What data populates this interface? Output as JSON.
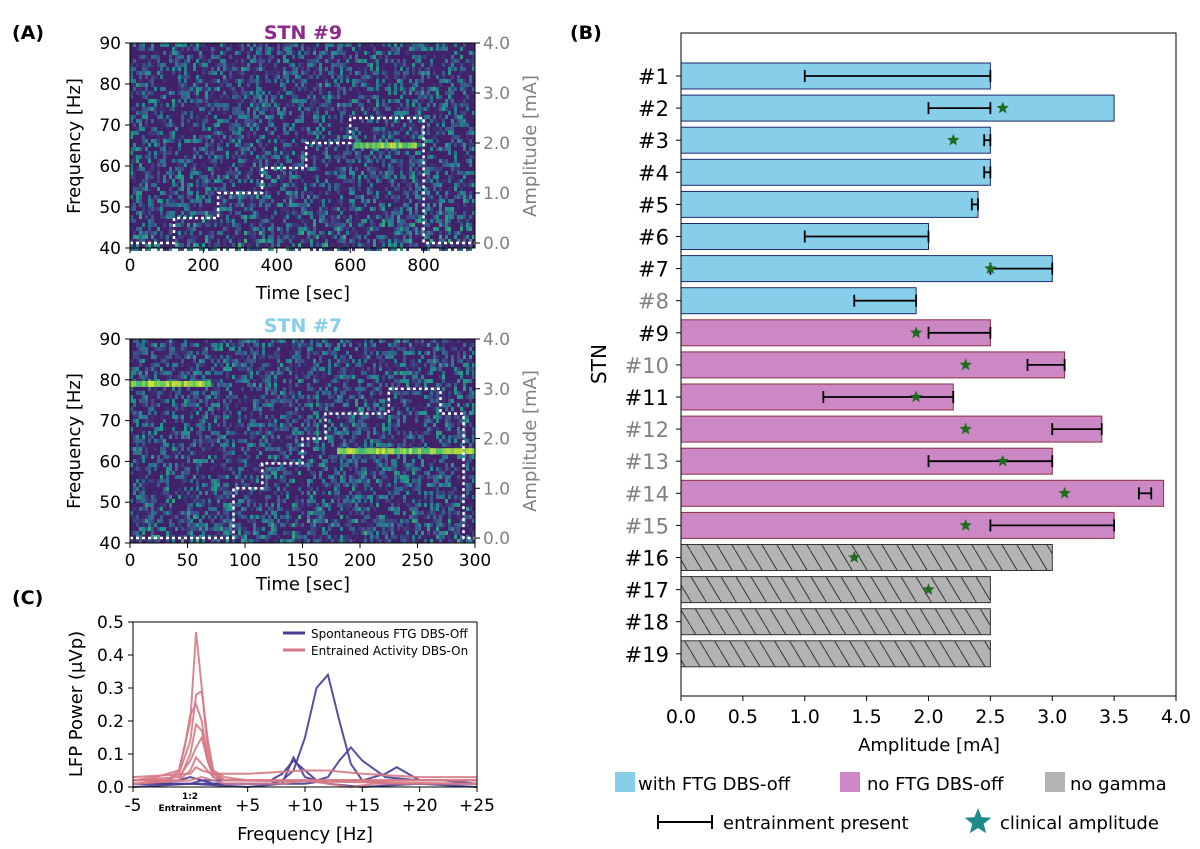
{
  "panel_labels": {
    "a": "(A)",
    "b": "(B)",
    "c": "(C)"
  },
  "colors": {
    "ftg_blue": "#87ceeb",
    "noftg_pink": "#cc88c4",
    "gray": "#b3b3b3",
    "star": "#1f6b1f",
    "legend_star": "#1f8a8a",
    "spont_line": "#473c96",
    "entr_line": "#d67a85",
    "stn9_title": "#8a2a8a",
    "stn7_title": "#87ceeb",
    "label_gray": "#808080"
  },
  "chart_data": [
    {
      "id": "spec9",
      "type": "heatmap",
      "title": "STN #9",
      "xlabel": "Time [sec]",
      "ylabel": "Frequency [Hz]",
      "y2label": "Amplitude [mA]",
      "xlim": [
        0,
        940
      ],
      "ylim": [
        40,
        90
      ],
      "y2lim": [
        -0.1,
        4.0
      ],
      "xticks": [
        "0",
        "200",
        "400",
        "600",
        "800"
      ],
      "xtick_values": [
        0,
        200,
        400,
        600,
        800
      ],
      "yticks": [
        "40",
        "50",
        "60",
        "70",
        "80",
        "90"
      ],
      "yticks2": [
        "0.0",
        "1.0",
        "2.0",
        "3.0",
        "4.0"
      ],
      "amplitude_steps": [
        {
          "t_start": 0,
          "t_end": 120,
          "amp": 0.0
        },
        {
          "t_start": 120,
          "t_end": 240,
          "amp": 0.5
        },
        {
          "t_start": 240,
          "t_end": 360,
          "amp": 1.0
        },
        {
          "t_start": 360,
          "t_end": 480,
          "amp": 1.5
        },
        {
          "t_start": 480,
          "t_end": 600,
          "amp": 2.0
        },
        {
          "t_start": 600,
          "t_end": 800,
          "amp": 2.5
        },
        {
          "t_start": 800,
          "t_end": 940,
          "amp": 0.0
        }
      ],
      "narrowband_features": [
        {
          "t_start": 610,
          "t_end": 780,
          "freq": 65
        }
      ]
    },
    {
      "id": "spec7",
      "type": "heatmap",
      "title": "STN #7",
      "xlabel": "Time [sec]",
      "ylabel": "Frequency [Hz]",
      "y2label": "Amplitude [mA]",
      "xlim": [
        0,
        300
      ],
      "ylim": [
        40,
        90
      ],
      "y2lim": [
        -0.1,
        4.0
      ],
      "xticks": [
        "0",
        "50",
        "100",
        "150",
        "200",
        "250",
        "300"
      ],
      "xtick_values": [
        0,
        50,
        100,
        150,
        200,
        250,
        300
      ],
      "yticks": [
        "40",
        "50",
        "60",
        "70",
        "80",
        "90"
      ],
      "yticks2": [
        "0.0",
        "1.0",
        "2.0",
        "3.0",
        "4.0"
      ],
      "amplitude_steps": [
        {
          "t_start": 0,
          "t_end": 90,
          "amp": 0.0
        },
        {
          "t_start": 90,
          "t_end": 115,
          "amp": 1.0
        },
        {
          "t_start": 115,
          "t_end": 150,
          "amp": 1.5
        },
        {
          "t_start": 150,
          "t_end": 170,
          "amp": 2.0
        },
        {
          "t_start": 170,
          "t_end": 225,
          "amp": 2.5
        },
        {
          "t_start": 225,
          "t_end": 270,
          "amp": 3.0
        },
        {
          "t_start": 270,
          "t_end": 280,
          "amp": 2.5
        },
        {
          "t_start": 280,
          "t_end": 290,
          "amp": 2.5
        },
        {
          "t_start": 290,
          "t_end": 300,
          "amp": 0.0
        }
      ],
      "narrowband_features": [
        {
          "t_start": 0,
          "t_end": 70,
          "freq": 79
        },
        {
          "t_start": 180,
          "t_end": 300,
          "freq": 62.5
        }
      ]
    },
    {
      "id": "spectra",
      "type": "line",
      "xlabel": "Frequency [Hz]",
      "ylabel": "LFP Power (μVp)",
      "xlim": [
        -5,
        25
      ],
      "ylim": [
        0,
        0.5
      ],
      "xticks": [
        "-5",
        "+5",
        "+10",
        "+15",
        "+20",
        "+25"
      ],
      "xtick_values": [
        -5,
        5,
        10,
        15,
        20,
        25
      ],
      "yticks": [
        "0.0",
        "0.1",
        "0.2",
        "0.3",
        "0.4",
        "0.5"
      ],
      "entrainment_label": [
        "1:2",
        "Entrainment"
      ],
      "legend": [
        {
          "label": "Spontaneous FTG DBS-Off",
          "color": "#473c96"
        },
        {
          "label": "Entrained Activity DBS-On",
          "color": "#d67a85"
        }
      ],
      "series": [
        {
          "group": "spont",
          "x": [
            -5,
            -3,
            -1,
            0,
            2,
            4,
            6,
            7,
            8,
            9,
            10,
            11,
            12,
            13,
            14,
            15,
            17,
            20,
            25
          ],
          "y": [
            0.01,
            0.01,
            0.01,
            0.01,
            0.01,
            0.01,
            0.01,
            0.01,
            0.02,
            0.05,
            0.15,
            0.3,
            0.34,
            0.2,
            0.07,
            0.02,
            0.01,
            0.01,
            0.01
          ]
        },
        {
          "group": "spont",
          "x": [
            -5,
            -1,
            0,
            1,
            3,
            5,
            7,
            8,
            9,
            10,
            11,
            12,
            13,
            14,
            15,
            17,
            20,
            25
          ],
          "y": [
            0.02,
            0.02,
            0.03,
            0.02,
            0.02,
            0.02,
            0.02,
            0.04,
            0.08,
            0.05,
            0.02,
            0.03,
            0.08,
            0.12,
            0.08,
            0.03,
            0.02,
            0.02
          ]
        },
        {
          "group": "spont",
          "x": [
            -5,
            0,
            1,
            2,
            5,
            8,
            10,
            12,
            15,
            17,
            18,
            19,
            20,
            22,
            25
          ],
          "y": [
            0.01,
            0.01,
            0.02,
            0.01,
            0.01,
            0.01,
            0.01,
            0.02,
            0.02,
            0.04,
            0.06,
            0.04,
            0.02,
            0.02,
            0.01
          ]
        },
        {
          "group": "spont",
          "x": [
            -5,
            0,
            5,
            8,
            9,
            10,
            12,
            15,
            20,
            25
          ],
          "y": [
            0.0,
            0.01,
            0.0,
            0.01,
            0.09,
            0.03,
            0.01,
            0.0,
            0.01,
            0.0
          ]
        },
        {
          "group": "entr",
          "x": [
            -5,
            -3,
            -1,
            0,
            0.5,
            1,
            1.5,
            2,
            3,
            5,
            10,
            15,
            25
          ],
          "y": [
            0.02,
            0.03,
            0.05,
            0.2,
            0.47,
            0.3,
            0.12,
            0.05,
            0.03,
            0.02,
            0.02,
            0.02,
            0.02
          ]
        },
        {
          "group": "entr",
          "x": [
            -5,
            -2,
            -1,
            0,
            0.5,
            1,
            1.5,
            2,
            3,
            5,
            10,
            25
          ],
          "y": [
            0.02,
            0.02,
            0.04,
            0.14,
            0.28,
            0.29,
            0.15,
            0.05,
            0.02,
            0.02,
            0.02,
            0.02
          ]
        },
        {
          "group": "entr",
          "x": [
            -5,
            -2,
            -1,
            -0.5,
            0,
            0.5,
            1,
            1.5,
            2,
            3,
            6,
            25
          ],
          "y": [
            0.02,
            0.02,
            0.05,
            0.12,
            0.22,
            0.25,
            0.2,
            0.08,
            0.04,
            0.02,
            0.02,
            0.02
          ]
        },
        {
          "group": "entr",
          "x": [
            -5,
            -1,
            0,
            0.5,
            1,
            1.5,
            2,
            3,
            25
          ],
          "y": [
            0.01,
            0.02,
            0.1,
            0.19,
            0.17,
            0.1,
            0.04,
            0.02,
            0.02
          ]
        },
        {
          "group": "entr",
          "x": [
            -5,
            -1,
            0,
            0.5,
            1,
            1.5,
            2,
            3,
            25
          ],
          "y": [
            0.02,
            0.03,
            0.08,
            0.12,
            0.15,
            0.08,
            0.03,
            0.02,
            0.02
          ]
        },
        {
          "group": "entr",
          "x": [
            -5,
            -1,
            0,
            0.5,
            1,
            2,
            3,
            25
          ],
          "y": [
            0.01,
            0.02,
            0.05,
            0.09,
            0.07,
            0.03,
            0.02,
            0.01
          ]
        },
        {
          "group": "entr",
          "x": [
            -5,
            0,
            0.5,
            1,
            2,
            5,
            10,
            12,
            15,
            20,
            25
          ],
          "y": [
            0.03,
            0.04,
            0.06,
            0.05,
            0.04,
            0.04,
            0.05,
            0.05,
            0.04,
            0.03,
            0.03
          ]
        },
        {
          "group": "entr",
          "x": [
            -5,
            0,
            1,
            2,
            3,
            8,
            10,
            12,
            14,
            16,
            25
          ],
          "y": [
            0.01,
            0.02,
            0.03,
            0.02,
            0.01,
            0.01,
            0.02,
            0.01,
            0.0,
            0.01,
            0.01
          ]
        }
      ]
    },
    {
      "id": "bars",
      "type": "bar",
      "orientation": "horizontal",
      "xlabel": "Amplitude [mA]",
      "ylabel": "STN",
      "xlim": [
        0,
        4.0
      ],
      "xticks": [
        "0.0",
        "0.5",
        "1.0",
        "1.5",
        "2.0",
        "2.5",
        "3.0",
        "3.5",
        "4.0"
      ],
      "xtick_values": [
        0,
        0.5,
        1.0,
        1.5,
        2.0,
        2.5,
        3.0,
        3.5,
        4.0
      ],
      "categories": [
        "#1",
        "#2",
        "#3",
        "#4",
        "#5",
        "#6",
        "#7",
        "#8",
        "#9",
        "#10",
        "#11",
        "#12",
        "#13",
        "#14",
        "#15",
        "#16",
        "#17",
        "#18",
        "#19"
      ],
      "label_color": [
        "black",
        "black",
        "black",
        "black",
        "black",
        "black",
        "black",
        "gray",
        "black",
        "gray",
        "black",
        "gray",
        "gray",
        "gray",
        "gray",
        "black",
        "black",
        "black",
        "black"
      ],
      "values": [
        2.5,
        3.5,
        2.5,
        2.5,
        2.4,
        2.0,
        3.0,
        1.9,
        2.5,
        3.1,
        2.2,
        3.4,
        3.0,
        3.9,
        3.5,
        3.0,
        2.5,
        2.5,
        2.5
      ],
      "group": [
        "ftg",
        "ftg",
        "ftg",
        "ftg",
        "ftg",
        "ftg",
        "ftg",
        "ftg",
        "noftg",
        "noftg",
        "noftg",
        "noftg",
        "noftg",
        "noftg",
        "noftg",
        "nogamma",
        "nogamma",
        "nogamma",
        "nogamma"
      ],
      "entrainment_range": [
        [
          1.0,
          2.5
        ],
        [
          2.0,
          2.5
        ],
        [
          2.45,
          2.5
        ],
        [
          2.45,
          2.5
        ],
        [
          2.35,
          2.4
        ],
        [
          1.0,
          2.0
        ],
        [
          2.5,
          3.0
        ],
        [
          1.4,
          1.9
        ],
        [
          2.0,
          2.5
        ],
        [
          2.8,
          3.1
        ],
        [
          1.15,
          2.2
        ],
        [
          3.0,
          3.4
        ],
        [
          2.0,
          3.0
        ],
        [
          3.7,
          3.8
        ],
        [
          2.5,
          3.5
        ],
        null,
        null,
        null,
        null
      ],
      "clinical_amplitude": [
        null,
        2.6,
        2.2,
        null,
        null,
        null,
        2.5,
        null,
        1.9,
        2.3,
        1.9,
        2.3,
        2.6,
        3.1,
        2.3,
        1.4,
        2.0,
        null,
        null
      ],
      "legend": [
        {
          "label": "with FTG DBS-off",
          "key": "ftg"
        },
        {
          "label": "no FTG DBS-off",
          "key": "noftg"
        },
        {
          "label": "no gamma",
          "key": "nogamma"
        },
        {
          "label": "entrainment present",
          "key": "errorbar"
        },
        {
          "label": "clinical amplitude",
          "key": "star"
        }
      ]
    }
  ]
}
